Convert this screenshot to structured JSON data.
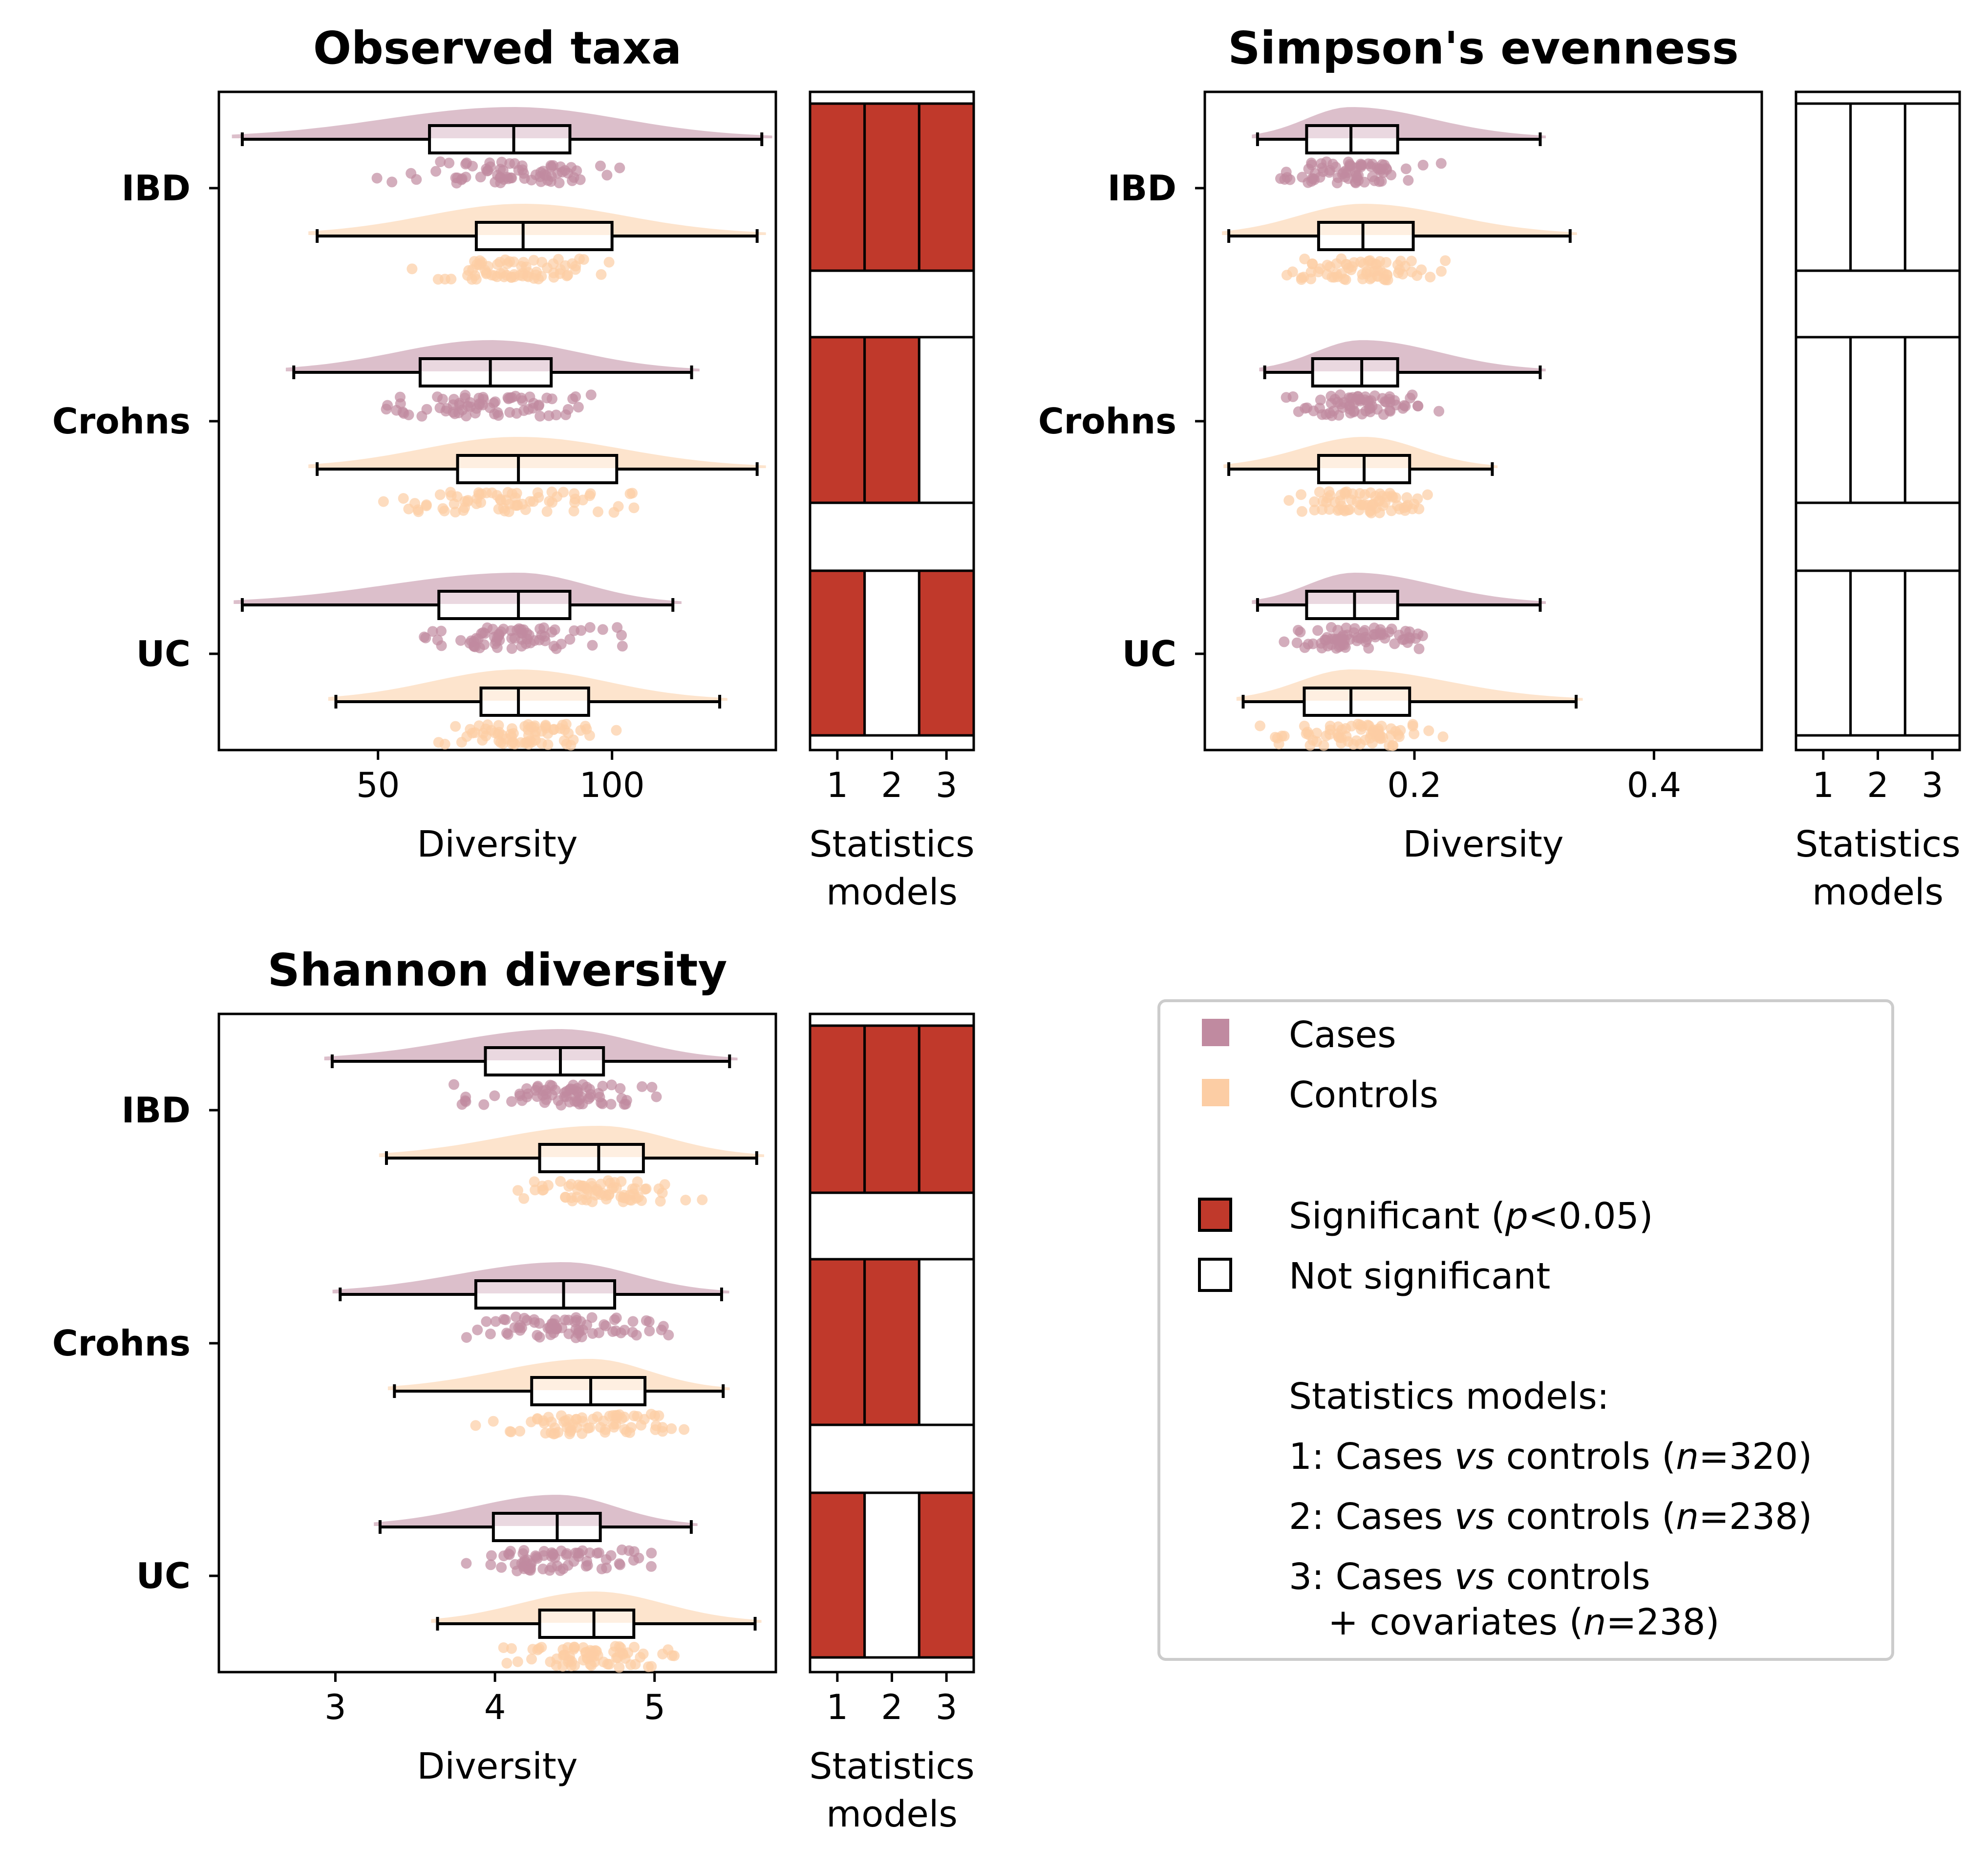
{
  "colors": {
    "cases": "#c08aa0",
    "controls": "#fccda4",
    "significant": "#c0392b",
    "not_significant": "#ffffff"
  },
  "legend": {
    "cases_label": "Cases",
    "controls_label": "Controls",
    "significant_pre": "Significant (",
    "significant_p": "p",
    "significant_post": "<0.05)",
    "not_significant_label": "Not significant",
    "models_title": "Statistics models:",
    "model1_pre": "1: Cases ",
    "model1_vs": "vs",
    "model1_mid": " controls (",
    "model1_n": "n",
    "model1_post": "=320)",
    "model2_pre": "2: Cases ",
    "model2_vs": "vs",
    "model2_mid": " controls (",
    "model2_n": "n",
    "model2_post": "=238)",
    "model3_pre": "3: Cases ",
    "model3_vs": "vs",
    "model3_mid": " controls",
    "model3b_pre": "+ covariates (",
    "model3b_n": "n",
    "model3b_post": "=238)"
  },
  "chart_data": [
    {
      "type": "box",
      "title": "Observed taxa",
      "xlabel": "Diversity",
      "xlim": [
        16,
        135
      ],
      "xticks": [
        {
          "v": 50,
          "label": "50"
        },
        {
          "v": 100,
          "label": "100"
        }
      ],
      "categories": [
        "IBD",
        "Crohns",
        "UC"
      ],
      "series": [
        {
          "name": "Cases",
          "group": "IBD",
          "min": 21,
          "q1": 61,
          "median": 79,
          "q3": 91,
          "max": 132
        },
        {
          "name": "Controls",
          "group": "IBD",
          "min": 37,
          "q1": 71,
          "median": 81,
          "q3": 100,
          "max": 131
        },
        {
          "name": "Cases",
          "group": "Crohns",
          "min": 32,
          "q1": 59,
          "median": 74,
          "q3": 87,
          "max": 117
        },
        {
          "name": "Controls",
          "group": "Crohns",
          "min": 37,
          "q1": 67,
          "median": 80,
          "q3": 101,
          "max": 131
        },
        {
          "name": "Cases",
          "group": "UC",
          "min": 21,
          "q1": 63,
          "median": 80,
          "q3": 91,
          "max": 113
        },
        {
          "name": "Controls",
          "group": "UC",
          "min": 41,
          "q1": 72,
          "median": 80,
          "q3": 95,
          "max": 123
        }
      ],
      "stats_xlabel": "Statistics models",
      "stats_ticks": [
        "1",
        "2",
        "3"
      ],
      "significance": {
        "IBD": [
          true,
          true,
          true
        ],
        "Crohns": [
          true,
          true,
          false
        ],
        "UC": [
          true,
          false,
          true
        ]
      }
    },
    {
      "type": "box",
      "title": "Simpson's evenness",
      "xlabel": "Diversity",
      "xlim": [
        0.025,
        0.49
      ],
      "xticks": [
        {
          "v": 0.2,
          "label": "0.2"
        },
        {
          "v": 0.4,
          "label": "0.4"
        }
      ],
      "categories": [
        "IBD",
        "Crohns",
        "UC"
      ],
      "series": [
        {
          "name": "Cases",
          "group": "IBD",
          "min": 0.069,
          "q1": 0.11,
          "median": 0.147,
          "q3": 0.186,
          "max": 0.305
        },
        {
          "name": "Controls",
          "group": "IBD",
          "min": 0.045,
          "q1": 0.12,
          "median": 0.157,
          "q3": 0.199,
          "max": 0.33
        },
        {
          "name": "Cases",
          "group": "Crohns",
          "min": 0.075,
          "q1": 0.115,
          "median": 0.156,
          "q3": 0.186,
          "max": 0.305
        },
        {
          "name": "Controls",
          "group": "Crohns",
          "min": 0.045,
          "q1": 0.12,
          "median": 0.158,
          "q3": 0.196,
          "max": 0.265
        },
        {
          "name": "Cases",
          "group": "UC",
          "min": 0.069,
          "q1": 0.11,
          "median": 0.15,
          "q3": 0.186,
          "max": 0.305
        },
        {
          "name": "Controls",
          "group": "UC",
          "min": 0.057,
          "q1": 0.108,
          "median": 0.147,
          "q3": 0.196,
          "max": 0.335
        }
      ],
      "stats_xlabel": "Statistics models",
      "stats_ticks": [
        "1",
        "2",
        "3"
      ],
      "significance": {
        "IBD": [
          false,
          false,
          false
        ],
        "Crohns": [
          false,
          false,
          false
        ],
        "UC": [
          false,
          false,
          false
        ]
      }
    },
    {
      "type": "box",
      "title": "Shannon diversity",
      "xlabel": "Diversity",
      "xlim": [
        2.27,
        5.76
      ],
      "xticks": [
        {
          "v": 3,
          "label": "3"
        },
        {
          "v": 4,
          "label": "4"
        },
        {
          "v": 5,
          "label": "5"
        }
      ],
      "categories": [
        "IBD",
        "Crohns",
        "UC"
      ],
      "series": [
        {
          "name": "Cases",
          "group": "IBD",
          "min": 2.98,
          "q1": 3.94,
          "median": 4.41,
          "q3": 4.68,
          "max": 5.47
        },
        {
          "name": "Controls",
          "group": "IBD",
          "min": 3.32,
          "q1": 4.28,
          "median": 4.65,
          "q3": 4.93,
          "max": 5.64
        },
        {
          "name": "Cases",
          "group": "Crohns",
          "min": 3.03,
          "q1": 3.88,
          "median": 4.43,
          "q3": 4.75,
          "max": 5.42
        },
        {
          "name": "Controls",
          "group": "Crohns",
          "min": 3.37,
          "q1": 4.23,
          "median": 4.6,
          "q3": 4.94,
          "max": 5.43
        },
        {
          "name": "Cases",
          "group": "UC",
          "min": 3.28,
          "q1": 3.99,
          "median": 4.39,
          "q3": 4.66,
          "max": 5.23
        },
        {
          "name": "Controls",
          "group": "UC",
          "min": 3.64,
          "q1": 4.28,
          "median": 4.62,
          "q3": 4.87,
          "max": 5.63
        }
      ],
      "stats_xlabel": "Statistics models",
      "stats_ticks": [
        "1",
        "2",
        "3"
      ],
      "significance": {
        "IBD": [
          true,
          true,
          true
        ],
        "Crohns": [
          true,
          true,
          false
        ],
        "UC": [
          true,
          false,
          true
        ]
      }
    }
  ]
}
